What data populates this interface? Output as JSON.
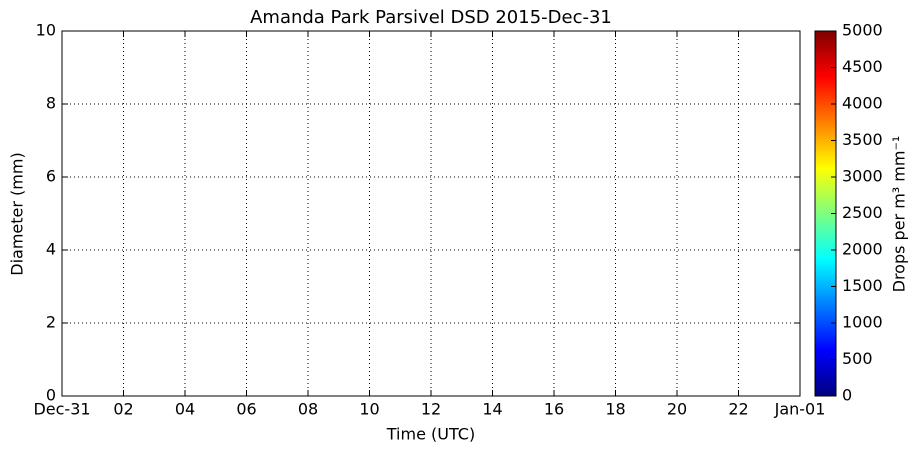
{
  "chart_data": {
    "type": "heatmap",
    "title": "Amanda Park Parsivel DSD 2015-Dec-31",
    "xlabel": "Time (UTC)",
    "ylabel": "Diameter (mm)",
    "xlim": [
      0,
      24
    ],
    "xticks": [
      {
        "value": 0,
        "label": "Dec-31"
      },
      {
        "value": 2,
        "label": "02"
      },
      {
        "value": 4,
        "label": "04"
      },
      {
        "value": 6,
        "label": "06"
      },
      {
        "value": 8,
        "label": "08"
      },
      {
        "value": 10,
        "label": "10"
      },
      {
        "value": 12,
        "label": "12"
      },
      {
        "value": 14,
        "label": "14"
      },
      {
        "value": 16,
        "label": "16"
      },
      {
        "value": 18,
        "label": "18"
      },
      {
        "value": 20,
        "label": "20"
      },
      {
        "value": 22,
        "label": "22"
      },
      {
        "value": 24,
        "label": "Jan-01"
      }
    ],
    "ylim": [
      0,
      10
    ],
    "yticks": [
      0,
      2,
      4,
      6,
      8,
      10
    ],
    "grid": true,
    "colormap": "jet",
    "colorbar_label": "Drops per m³ mm⁻¹",
    "clim": [
      0,
      5000
    ],
    "cticks": [
      0,
      500,
      1000,
      1500,
      2000,
      2500,
      3000,
      3500,
      4000,
      4500,
      5000
    ]
  }
}
